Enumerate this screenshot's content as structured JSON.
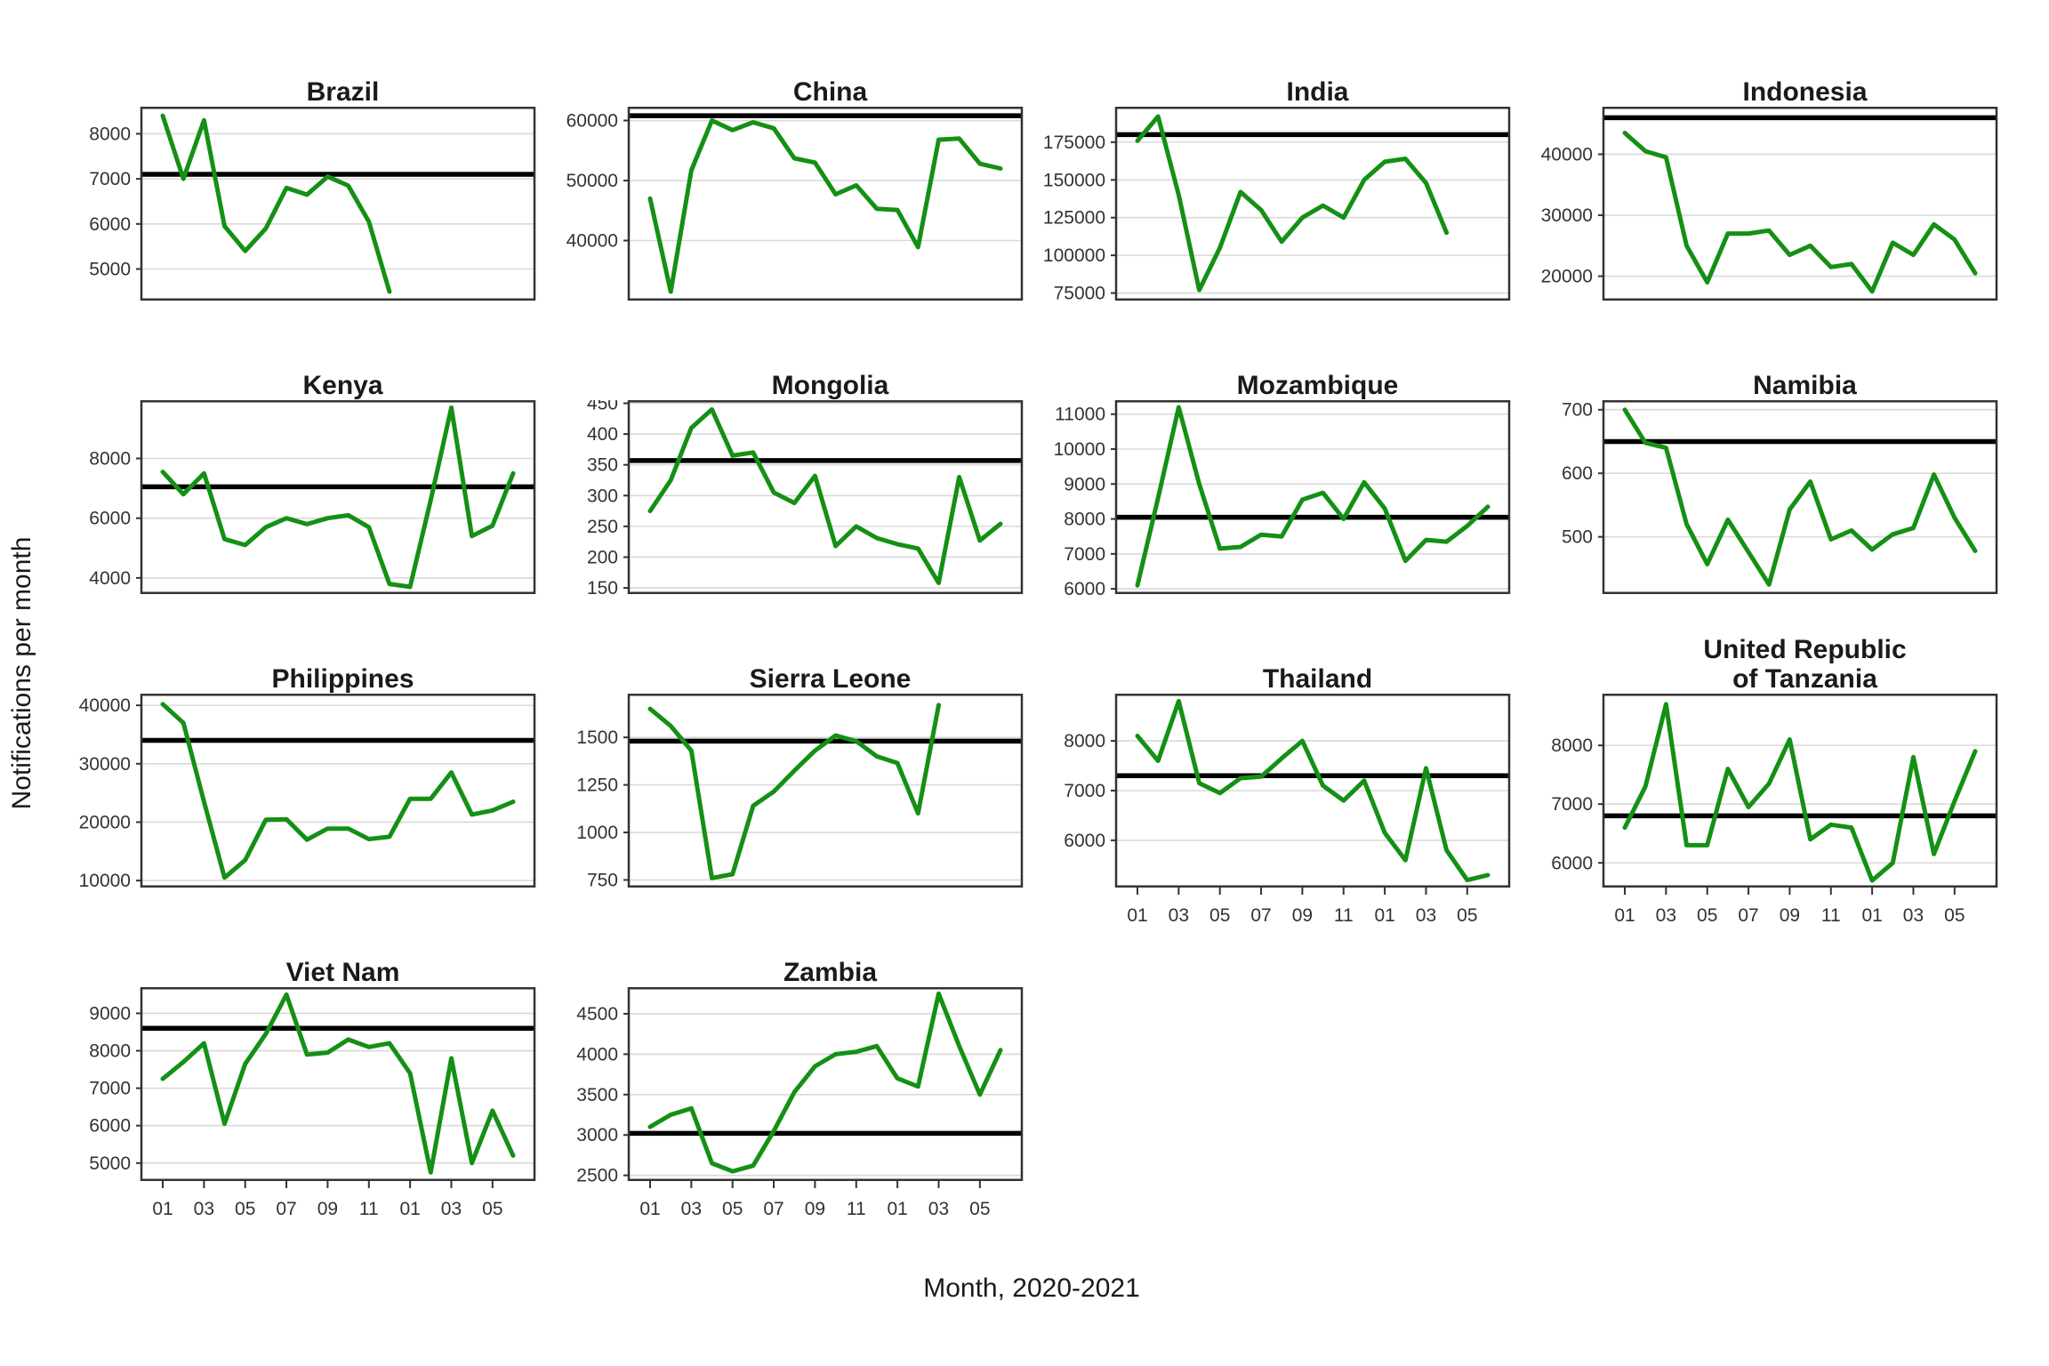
{
  "figure": {
    "y_axis_label": "Notifications per month",
    "x_axis_label": "Month, 2020-2021",
    "colors": {
      "line": "#149014",
      "reference_line": "#000000",
      "gridline": "#d9d9d9",
      "panel_border": "#333333",
      "tick_text": "#333333",
      "title_text": "#1a1a1a"
    }
  },
  "chart_data": {
    "type": "line",
    "layout": "facet-grid-4-columns",
    "x_axis": {
      "label": "Month, 2020-2021",
      "months_range": 18,
      "tick_months": [
        1,
        3,
        5,
        7,
        9,
        11,
        13,
        15,
        17
      ],
      "tick_labels": [
        "01",
        "03",
        "05",
        "07",
        "09",
        "11",
        "01",
        "03",
        "05"
      ]
    },
    "y_axis_label": "Notifications per month",
    "series_style": {
      "line_color": "#149014",
      "reference_color": "#000000"
    },
    "facets": [
      {
        "title": "Brazil",
        "row": 1,
        "col": 1,
        "show_x_axis": false,
        "y_ticks": [
          8000,
          7000,
          6000,
          5000
        ],
        "ylim": [
          4300,
          8600
        ],
        "reference_line": 7100,
        "values": [
          8400,
          7000,
          8300,
          5950,
          5400,
          5900,
          6800,
          6650,
          7050,
          6850,
          6050,
          4500
        ]
      },
      {
        "title": "China",
        "row": 1,
        "col": 2,
        "show_x_axis": false,
        "y_ticks": [
          60000,
          50000,
          40000
        ],
        "ylim": [
          30000,
          62300
        ],
        "reference_line": 60800,
        "values": [
          47000,
          31500,
          51700,
          60000,
          58400,
          59700,
          58700,
          53700,
          53000,
          47700,
          49200,
          45300,
          45100,
          38900,
          56800,
          57000,
          52800,
          52000
        ]
      },
      {
        "title": "India",
        "row": 1,
        "col": 3,
        "show_x_axis": false,
        "y_ticks": [
          175000,
          150000,
          125000,
          100000,
          75000
        ],
        "ylim": [
          70000,
          198500
        ],
        "reference_line": 180000,
        "values": [
          176000,
          192000,
          140000,
          77000,
          105000,
          142000,
          130000,
          109000,
          125000,
          133000,
          125000,
          150000,
          162000,
          164000,
          148000,
          115000
        ]
      },
      {
        "title": "Indonesia",
        "row": 1,
        "col": 4,
        "show_x_axis": false,
        "y_ticks": [
          40000,
          30000,
          20000
        ],
        "ylim": [
          16000,
          47800
        ],
        "reference_line": 46000,
        "values": [
          43500,
          40500,
          39500,
          25000,
          19000,
          27000,
          27000,
          27500,
          23500,
          25000,
          21500,
          22000,
          17500,
          25500,
          23500,
          28500,
          26000,
          20500
        ]
      },
      {
        "title": "Kenya",
        "row": 2,
        "col": 1,
        "show_x_axis": false,
        "y_ticks": [
          8000,
          6000,
          4000
        ],
        "ylim": [
          3460,
          9950
        ],
        "reference_line": 7050,
        "values": [
          7550,
          6800,
          7500,
          5300,
          5100,
          5700,
          6000,
          5800,
          6000,
          6100,
          5700,
          3800,
          3700,
          6600,
          9700,
          5400,
          5750,
          7500
        ]
      },
      {
        "title": "Mongolia",
        "row": 2,
        "col": 2,
        "show_x_axis": false,
        "y_ticks": [
          450,
          400,
          350,
          300,
          250,
          200,
          150
        ],
        "ylim": [
          140,
          455
        ],
        "reference_line": 357,
        "values": [
          275,
          325,
          410,
          440,
          365,
          370,
          305,
          288,
          332,
          218,
          250,
          231,
          221,
          214,
          158,
          330,
          227,
          254
        ]
      },
      {
        "title": "Mozambique",
        "row": 2,
        "col": 3,
        "show_x_axis": false,
        "y_ticks": [
          11000,
          10000,
          9000,
          8000,
          7000,
          6000
        ],
        "ylim": [
          5850,
          11400
        ],
        "reference_line": 8050,
        "values": [
          6100,
          8600,
          11200,
          9000,
          7150,
          7200,
          7550,
          7500,
          8550,
          8750,
          8000,
          9050,
          8300,
          6800,
          7400,
          7350,
          7800,
          8350
        ]
      },
      {
        "title": "Namibia",
        "row": 2,
        "col": 4,
        "show_x_axis": false,
        "y_ticks": [
          700,
          600,
          500
        ],
        "ylim": [
          410,
          715
        ],
        "reference_line": 650,
        "values": [
          700,
          648,
          640,
          520,
          457,
          527,
          476,
          425,
          543,
          587,
          496,
          510,
          480,
          504,
          514,
          598,
          530,
          478
        ]
      },
      {
        "title": "Philippines",
        "row": 3,
        "col": 1,
        "show_x_axis": false,
        "y_ticks": [
          40000,
          30000,
          20000,
          10000
        ],
        "ylim": [
          8800,
          42000
        ],
        "reference_line": 34000,
        "values": [
          40200,
          37000,
          23500,
          10500,
          13500,
          20400,
          20500,
          17000,
          18900,
          18900,
          17100,
          17500,
          24000,
          24000,
          28500,
          21300,
          22000,
          23500
        ]
      },
      {
        "title": "Sierra Leone",
        "row": 3,
        "col": 2,
        "show_x_axis": false,
        "y_ticks": [
          1500,
          1250,
          1000,
          750
        ],
        "ylim": [
          710,
          1730
        ],
        "reference_line": 1480,
        "values": [
          1650,
          1560,
          1430,
          760,
          780,
          1140,
          1215,
          1325,
          1430,
          1510,
          1480,
          1400,
          1365,
          1100,
          1670
        ]
      },
      {
        "title": "Thailand",
        "row": 3,
        "col": 3,
        "show_x_axis": true,
        "y_ticks": [
          8000,
          7000,
          6000
        ],
        "ylim": [
          5050,
          8950
        ],
        "reference_line": 7300,
        "values": [
          8100,
          7600,
          8800,
          7150,
          6950,
          7250,
          7280,
          7650,
          8000,
          7100,
          6800,
          7200,
          6150,
          5600,
          7450,
          5800,
          5200,
          5300
        ]
      },
      {
        "title": "United Republic\nof Tanzania",
        "row": 3,
        "col": 4,
        "show_x_axis": true,
        "y_ticks": [
          8000,
          7000,
          6000
        ],
        "ylim": [
          5580,
          8880
        ],
        "reference_line": 6800,
        "values": [
          6600,
          7300,
          8700,
          6300,
          6300,
          7600,
          6950,
          7350,
          8100,
          6400,
          6650,
          6600,
          5700,
          6000,
          7800,
          6150,
          7050,
          7900
        ]
      },
      {
        "title": "Viet Nam",
        "row": 4,
        "col": 1,
        "show_x_axis": true,
        "y_ticks": [
          9000,
          8000,
          7000,
          6000,
          5000
        ],
        "ylim": [
          4520,
          9700
        ],
        "reference_line": 8600,
        "values": [
          7250,
          7700,
          8200,
          6050,
          7650,
          8450,
          9500,
          7900,
          7950,
          8300,
          8100,
          8200,
          7400,
          4750,
          7800,
          5000,
          6400,
          5200
        ]
      },
      {
        "title": "Zambia",
        "row": 4,
        "col": 2,
        "show_x_axis": true,
        "y_ticks": [
          4500,
          4000,
          3500,
          3000,
          2500
        ],
        "ylim": [
          2430,
          4830
        ],
        "reference_line": 3020,
        "values": [
          3100,
          3250,
          3330,
          2650,
          2550,
          2620,
          3050,
          3530,
          3850,
          4000,
          4030,
          4100,
          3700,
          3600,
          4750,
          4100,
          3500,
          4050
        ]
      }
    ]
  }
}
